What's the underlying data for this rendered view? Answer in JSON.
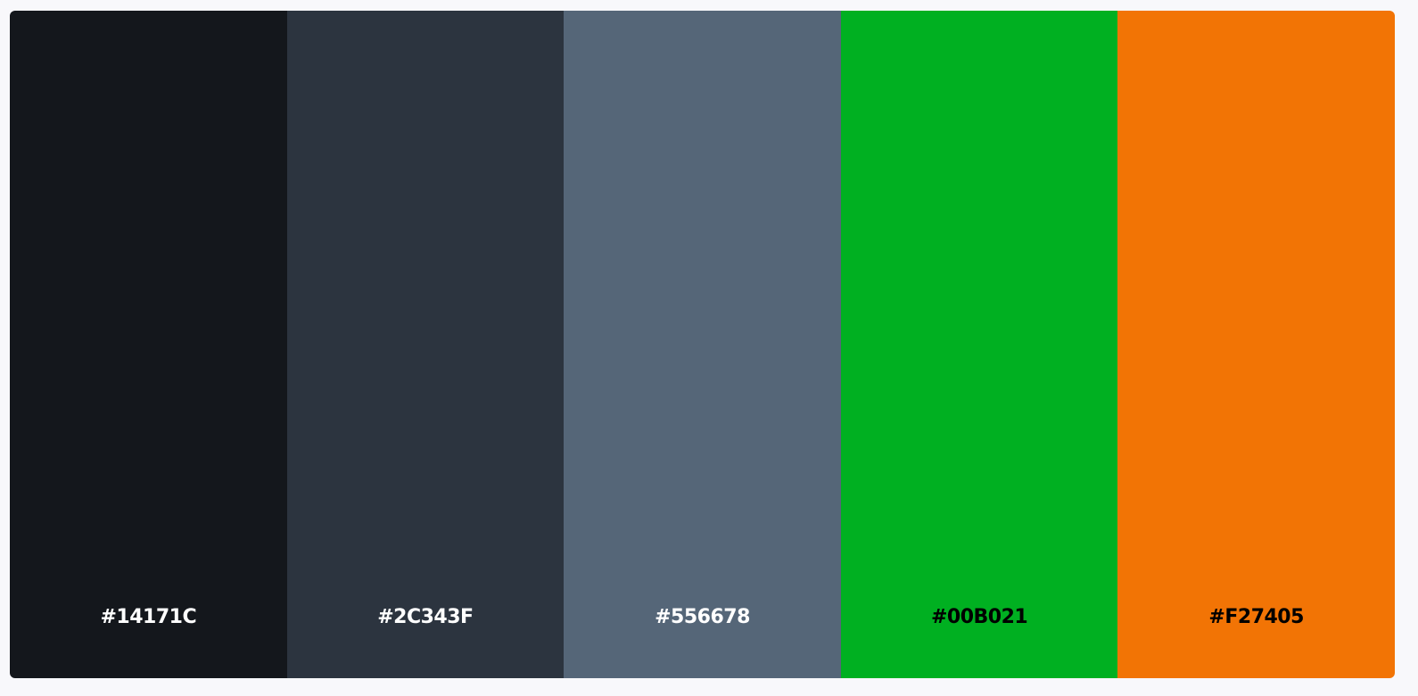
{
  "swatches": [
    {
      "hex": "#14171C",
      "color": "#14171C",
      "text_color": "#ffffff"
    },
    {
      "hex": "#2C343F",
      "color": "#2C343F",
      "text_color": "#ffffff"
    },
    {
      "hex": "#556678",
      "color": "#556678",
      "text_color": "#ffffff"
    },
    {
      "hex": "#00B021",
      "color": "#00B021",
      "text_color": "#000000"
    },
    {
      "hex": "#F27405",
      "color": "#F27405",
      "text_color": "#000000"
    }
  ],
  "page_background": "#f8f8fb"
}
